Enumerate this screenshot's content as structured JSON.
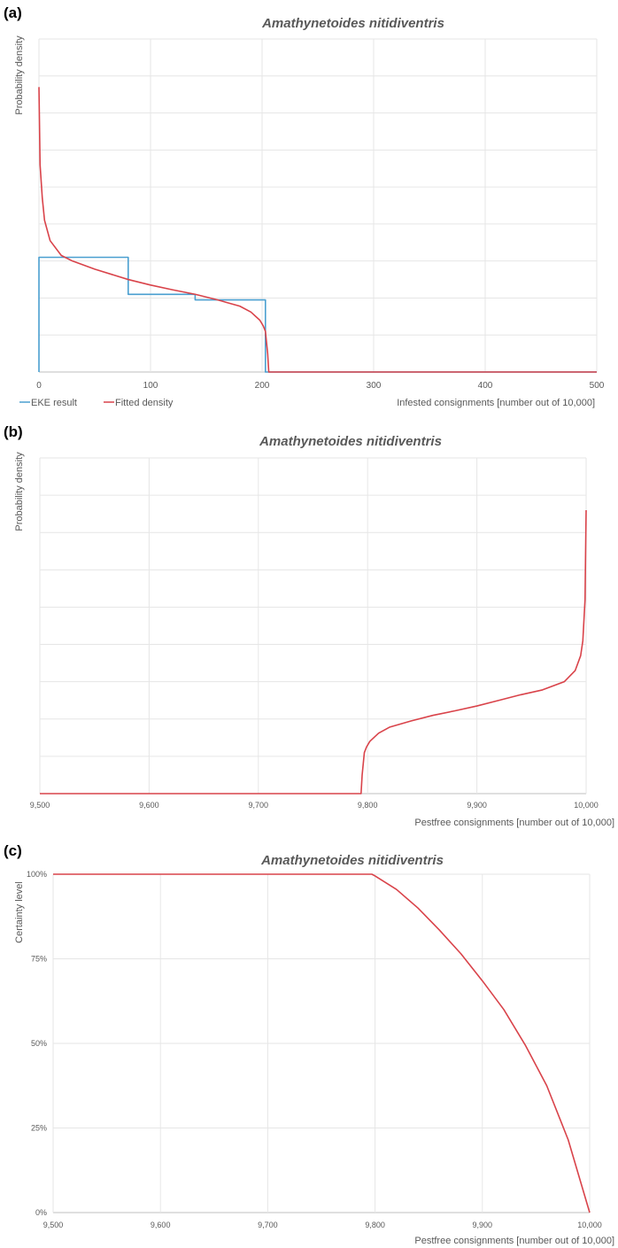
{
  "colors": {
    "eke": "#4a9fd0",
    "fitted": "#d9434a",
    "grid": "#e6e6e6",
    "text": "#595959"
  },
  "chart_data": [
    {
      "panel_label": "(a)",
      "type": "line",
      "title": "Amathynetoides nitidiventris",
      "xlabel": "Infested consignments [number out of 10,000]",
      "ylabel": "Probability density",
      "xlim": [
        0,
        500
      ],
      "ylim": [
        0,
        9
      ],
      "x_ticks": [
        0,
        100,
        200,
        300,
        400,
        500
      ],
      "x_tick_labels": [
        "0",
        "100",
        "200",
        "300",
        "400",
        "500"
      ],
      "grid": "on",
      "legend": "bottom-left",
      "series": [
        {
          "name": "EKE result",
          "style": "step",
          "x": [
            0,
            0,
            80,
            80,
            140,
            140,
            203,
            203,
            500
          ],
          "y": [
            0,
            3.1,
            3.1,
            2.1,
            2.1,
            1.95,
            1.95,
            0,
            0
          ]
        },
        {
          "name": "Fitted density",
          "style": "line",
          "x": [
            0,
            1,
            3,
            5,
            10,
            20,
            30,
            50,
            80,
            100,
            120,
            140,
            160,
            180,
            190,
            198,
            201,
            203,
            205,
            206,
            500
          ],
          "y": [
            7.7,
            5.6,
            4.7,
            4.1,
            3.55,
            3.15,
            3.0,
            2.78,
            2.5,
            2.35,
            2.22,
            2.1,
            1.95,
            1.78,
            1.62,
            1.4,
            1.25,
            1.1,
            0.5,
            0,
            0
          ]
        }
      ]
    },
    {
      "panel_label": "(b)",
      "type": "line",
      "title": "Amathynetoides nitidiventris",
      "xlabel": "Pestfree consignments [number out of 10,000]",
      "ylabel": "Probability density",
      "xlim": [
        9500,
        10000
      ],
      "ylim": [
        0,
        9
      ],
      "x_ticks": [
        9500,
        9600,
        9700,
        9800,
        9900,
        10000
      ],
      "x_tick_labels": [
        "9,500",
        "9,600",
        "9,700",
        "9,800",
        "9,900",
        "10,000"
      ],
      "grid": "on",
      "series": [
        {
          "name": "Fitted density",
          "x": [
            9500,
            9794,
            9795,
            9797,
            9799,
            9802,
            9810,
            9820,
            9840,
            9860,
            9880,
            9900,
            9920,
            9940,
            9960,
            9980,
            9990,
            9995,
            9997,
            9999,
            10000
          ],
          "y": [
            0,
            0,
            0.5,
            1.1,
            1.25,
            1.4,
            1.62,
            1.78,
            1.95,
            2.1,
            2.22,
            2.35,
            2.5,
            2.65,
            2.78,
            3.0,
            3.3,
            3.7,
            4.1,
            5.2,
            7.6
          ]
        }
      ]
    },
    {
      "panel_label": "(c)",
      "type": "line",
      "title": "Amathynetoides nitidiventris",
      "xlabel": "Pestfree consignments [number out of 10,000]",
      "ylabel": "Certainty level",
      "xlim": [
        9500,
        10000
      ],
      "ylim": [
        0,
        1
      ],
      "x_ticks": [
        9500,
        9600,
        9700,
        9800,
        9900,
        10000
      ],
      "x_tick_labels": [
        "9,500",
        "9,600",
        "9,700",
        "9,800",
        "9,900",
        "10,000"
      ],
      "y_ticks": [
        0,
        0.25,
        0.5,
        0.75,
        1
      ],
      "y_tick_labels": [
        "0%",
        "25%",
        "50%",
        "75%",
        "100%"
      ],
      "grid": "on",
      "series": [
        {
          "name": "Certainty level",
          "x": [
            9500,
            9797,
            9800,
            9820,
            9840,
            9860,
            9880,
            9900,
            9920,
            9940,
            9960,
            9980,
            10000
          ],
          "y": [
            1,
            1,
            0.995,
            0.955,
            0.9,
            0.835,
            0.765,
            0.685,
            0.6,
            0.495,
            0.375,
            0.215,
            0
          ]
        }
      ]
    }
  ]
}
